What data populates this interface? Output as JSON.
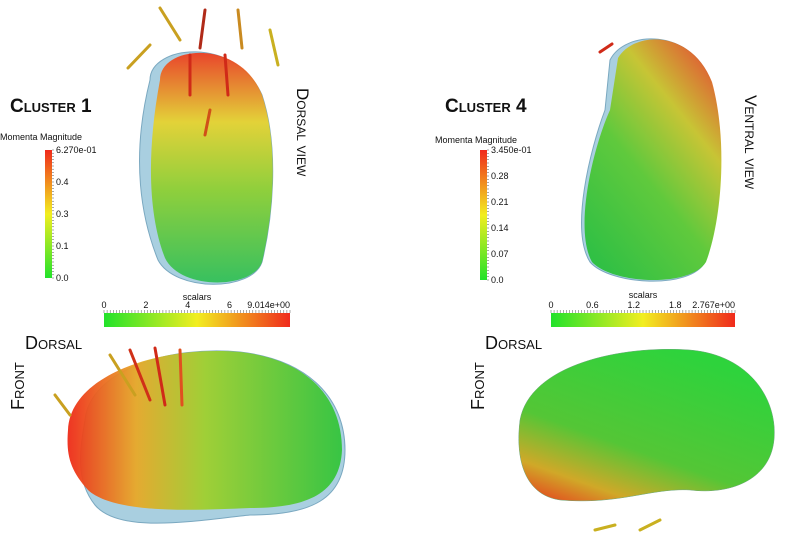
{
  "panels": [
    {
      "title": "Cluster 1",
      "view": "Dorsal view",
      "momenta": {
        "label": "Momenta Magnitude",
        "ticks": [
          "6.270e-01",
          "0.4",
          "0.3",
          "0.1",
          "0.0"
        ]
      },
      "scalars": {
        "label": "scalars",
        "ticks": [
          "0",
          "2",
          "4",
          "6",
          "9.014e+00"
        ]
      },
      "bottom_top_label": "Dorsal",
      "bottom_side_label": "Front"
    },
    {
      "title": "Cluster 4",
      "view": "Ventral view",
      "momenta": {
        "label": "Momenta Magnitude",
        "ticks": [
          "3.450e-01",
          "0.28",
          "0.21",
          "0.14",
          "0.07",
          "0.0"
        ]
      },
      "scalars": {
        "label": "scalars",
        "ticks": [
          "0",
          "0.6",
          "1.2",
          "1.8",
          "2.767e+00"
        ]
      },
      "bottom_top_label": "Dorsal",
      "bottom_side_label": "Front"
    }
  ]
}
